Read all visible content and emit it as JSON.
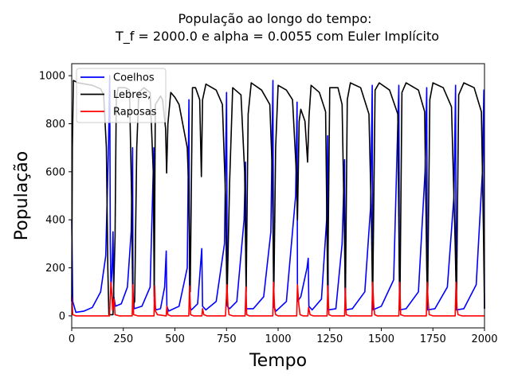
{
  "chart_data": {
    "type": "line",
    "title_lines": [
      "População ao longo do tempo:",
      "T_f = 2000.0 e alpha = 0.0055 com Euler Implícito"
    ],
    "xlabel": "Tempo",
    "ylabel": "População",
    "xlim": [
      0,
      2000
    ],
    "ylim": [
      -50,
      1050
    ],
    "xticks": [
      0,
      250,
      500,
      750,
      1000,
      1250,
      1500,
      1750,
      2000
    ],
    "yticks": [
      0,
      200,
      400,
      600,
      800,
      1000
    ],
    "grid": false,
    "legend_position": "top-left",
    "series": [
      {
        "name": "Coelhos",
        "color": "#0000ff",
        "points": [
          [
            0,
            400
          ],
          [
            5,
            60
          ],
          [
            20,
            15
          ],
          [
            60,
            20
          ],
          [
            100,
            35
          ],
          [
            140,
            100
          ],
          [
            165,
            250
          ],
          [
            178,
            700
          ],
          [
            184,
            1000
          ],
          [
            187,
            300
          ],
          [
            190,
            120
          ],
          [
            195,
            180
          ],
          [
            200,
            350
          ],
          [
            204,
            80
          ],
          [
            212,
            40
          ],
          [
            240,
            50
          ],
          [
            270,
            120
          ],
          [
            288,
            350
          ],
          [
            295,
            700
          ],
          [
            297,
            100
          ],
          [
            303,
            30
          ],
          [
            340,
            40
          ],
          [
            380,
            120
          ],
          [
            398,
            700
          ],
          [
            400,
            60
          ],
          [
            408,
            25
          ],
          [
            430,
            30
          ],
          [
            450,
            120
          ],
          [
            458,
            270
          ],
          [
            461,
            40
          ],
          [
            470,
            20
          ],
          [
            520,
            40
          ],
          [
            560,
            200
          ],
          [
            568,
            900
          ],
          [
            571,
            40
          ],
          [
            580,
            25
          ],
          [
            610,
            50
          ],
          [
            630,
            280
          ],
          [
            634,
            40
          ],
          [
            650,
            25
          ],
          [
            700,
            60
          ],
          [
            740,
            300
          ],
          [
            750,
            930
          ],
          [
            754,
            40
          ],
          [
            765,
            30
          ],
          [
            800,
            60
          ],
          [
            835,
            400
          ],
          [
            842,
            640
          ],
          [
            845,
            30
          ],
          [
            880,
            30
          ],
          [
            930,
            80
          ],
          [
            965,
            350
          ],
          [
            975,
            980
          ],
          [
            978,
            40
          ],
          [
            990,
            20
          ],
          [
            1040,
            60
          ],
          [
            1085,
            500
          ],
          [
            1092,
            890
          ],
          [
            1094,
            60
          ],
          [
            1110,
            80
          ],
          [
            1140,
            200
          ],
          [
            1146,
            240
          ],
          [
            1149,
            40
          ],
          [
            1165,
            25
          ],
          [
            1210,
            70
          ],
          [
            1235,
            400
          ],
          [
            1240,
            750
          ],
          [
            1243,
            25
          ],
          [
            1280,
            30
          ],
          [
            1310,
            300
          ],
          [
            1322,
            650
          ],
          [
            1325,
            25
          ],
          [
            1360,
            30
          ],
          [
            1420,
            100
          ],
          [
            1448,
            450
          ],
          [
            1456,
            960
          ],
          [
            1459,
            25
          ],
          [
            1500,
            40
          ],
          [
            1560,
            150
          ],
          [
            1585,
            960
          ],
          [
            1588,
            25
          ],
          [
            1620,
            30
          ],
          [
            1680,
            100
          ],
          [
            1712,
            600
          ],
          [
            1720,
            950
          ],
          [
            1723,
            25
          ],
          [
            1760,
            30
          ],
          [
            1820,
            120
          ],
          [
            1852,
            500
          ],
          [
            1860,
            960
          ],
          [
            1863,
            25
          ],
          [
            1900,
            30
          ],
          [
            1960,
            130
          ],
          [
            1990,
            600
          ],
          [
            1997,
            940
          ],
          [
            2000,
            30
          ]
        ]
      },
      {
        "name": "Lebres,",
        "color": "#000000",
        "points": [
          [
            0,
            60
          ],
          [
            3,
            700
          ],
          [
            8,
            980
          ],
          [
            30,
            970
          ],
          [
            100,
            960
          ],
          [
            140,
            945
          ],
          [
            155,
            920
          ],
          [
            168,
            700
          ],
          [
            175,
            200
          ],
          [
            180,
            5
          ],
          [
            200,
            5
          ],
          [
            210,
            330
          ],
          [
            216,
            900
          ],
          [
            225,
            950
          ],
          [
            260,
            950
          ],
          [
            280,
            940
          ],
          [
            290,
            500
          ],
          [
            296,
            40
          ],
          [
            305,
            60
          ],
          [
            315,
            700
          ],
          [
            325,
            930
          ],
          [
            350,
            950
          ],
          [
            380,
            930
          ],
          [
            395,
            600
          ],
          [
            400,
            80
          ],
          [
            405,
            880
          ],
          [
            420,
            900
          ],
          [
            430,
            915
          ],
          [
            440,
            900
          ],
          [
            455,
            780
          ],
          [
            460,
            595
          ],
          [
            466,
            800
          ],
          [
            480,
            930
          ],
          [
            500,
            910
          ],
          [
            520,
            880
          ],
          [
            560,
            700
          ],
          [
            568,
            500
          ],
          [
            574,
            100
          ],
          [
            585,
            950
          ],
          [
            600,
            950
          ],
          [
            620,
            900
          ],
          [
            628,
            580
          ],
          [
            634,
            900
          ],
          [
            650,
            965
          ],
          [
            700,
            940
          ],
          [
            730,
            880
          ],
          [
            745,
            500
          ],
          [
            752,
            50
          ],
          [
            765,
            550
          ],
          [
            780,
            950
          ],
          [
            820,
            920
          ],
          [
            838,
            600
          ],
          [
            845,
            100
          ],
          [
            855,
            840
          ],
          [
            870,
            970
          ],
          [
            920,
            940
          ],
          [
            960,
            880
          ],
          [
            972,
            600
          ],
          [
            979,
            80
          ],
          [
            988,
            700
          ],
          [
            1000,
            960
          ],
          [
            1040,
            940
          ],
          [
            1070,
            900
          ],
          [
            1088,
            600
          ],
          [
            1094,
            400
          ],
          [
            1102,
            810
          ],
          [
            1110,
            860
          ],
          [
            1130,
            810
          ],
          [
            1143,
            640
          ],
          [
            1150,
            830
          ],
          [
            1160,
            960
          ],
          [
            1200,
            930
          ],
          [
            1230,
            850
          ],
          [
            1240,
            100
          ],
          [
            1250,
            950
          ],
          [
            1290,
            950
          ],
          [
            1310,
            880
          ],
          [
            1322,
            300
          ],
          [
            1326,
            50
          ],
          [
            1335,
            900
          ],
          [
            1350,
            970
          ],
          [
            1400,
            950
          ],
          [
            1440,
            840
          ],
          [
            1452,
            400
          ],
          [
            1458,
            50
          ],
          [
            1470,
            940
          ],
          [
            1490,
            970
          ],
          [
            1540,
            940
          ],
          [
            1580,
            840
          ],
          [
            1587,
            200
          ],
          [
            1590,
            30
          ],
          [
            1600,
            930
          ],
          [
            1620,
            970
          ],
          [
            1680,
            940
          ],
          [
            1710,
            850
          ],
          [
            1720,
            200
          ],
          [
            1724,
            50
          ],
          [
            1735,
            900
          ],
          [
            1750,
            970
          ],
          [
            1800,
            950
          ],
          [
            1840,
            870
          ],
          [
            1858,
            300
          ],
          [
            1864,
            40
          ],
          [
            1875,
            920
          ],
          [
            1900,
            970
          ],
          [
            1950,
            950
          ],
          [
            1985,
            850
          ],
          [
            1995,
            350
          ],
          [
            2000,
            30
          ]
        ]
      },
      {
        "name": "Raposas",
        "color": "#ff0000",
        "points": [
          [
            0,
            80
          ],
          [
            5,
            5
          ],
          [
            20,
            0
          ],
          [
            183,
            0
          ],
          [
            190,
            140
          ],
          [
            193,
            110
          ],
          [
            198,
            25
          ],
          [
            205,
            70
          ],
          [
            210,
            5
          ],
          [
            230,
            0
          ],
          [
            293,
            0
          ],
          [
            296,
            130
          ],
          [
            300,
            5
          ],
          [
            320,
            0
          ],
          [
            399,
            0
          ],
          [
            402,
            125
          ],
          [
            406,
            20
          ],
          [
            415,
            5
          ],
          [
            458,
            0
          ],
          [
            461,
            40
          ],
          [
            466,
            5
          ],
          [
            480,
            0
          ],
          [
            567,
            0
          ],
          [
            571,
            125
          ],
          [
            576,
            5
          ],
          [
            590,
            0
          ],
          [
            631,
            0
          ],
          [
            634,
            30
          ],
          [
            640,
            5
          ],
          [
            655,
            0
          ],
          [
            745,
            0
          ],
          [
            752,
            130
          ],
          [
            757,
            40
          ],
          [
            762,
            5
          ],
          [
            780,
            0
          ],
          [
            840,
            0
          ],
          [
            844,
            120
          ],
          [
            848,
            5
          ],
          [
            860,
            0
          ],
          [
            974,
            0
          ],
          [
            978,
            140
          ],
          [
            983,
            30
          ],
          [
            988,
            5
          ],
          [
            1000,
            0
          ],
          [
            1090,
            0
          ],
          [
            1094,
            130
          ],
          [
            1100,
            50
          ],
          [
            1106,
            5
          ],
          [
            1120,
            0
          ],
          [
            1144,
            0
          ],
          [
            1148,
            35
          ],
          [
            1155,
            5
          ],
          [
            1170,
            0
          ],
          [
            1237,
            0
          ],
          [
            1241,
            125
          ],
          [
            1246,
            5
          ],
          [
            1260,
            0
          ],
          [
            1322,
            0
          ],
          [
            1326,
            115
          ],
          [
            1330,
            5
          ],
          [
            1345,
            0
          ],
          [
            1454,
            0
          ],
          [
            1458,
            140
          ],
          [
            1463,
            50
          ],
          [
            1468,
            5
          ],
          [
            1480,
            0
          ],
          [
            1585,
            0
          ],
          [
            1589,
            140
          ],
          [
            1594,
            5
          ],
          [
            1610,
            0
          ],
          [
            1718,
            0
          ],
          [
            1722,
            140
          ],
          [
            1727,
            60
          ],
          [
            1732,
            5
          ],
          [
            1750,
            0
          ],
          [
            1858,
            0
          ],
          [
            1862,
            140
          ],
          [
            1867,
            30
          ],
          [
            1872,
            5
          ],
          [
            1890,
            0
          ],
          [
            2000,
            0
          ]
        ]
      }
    ]
  }
}
